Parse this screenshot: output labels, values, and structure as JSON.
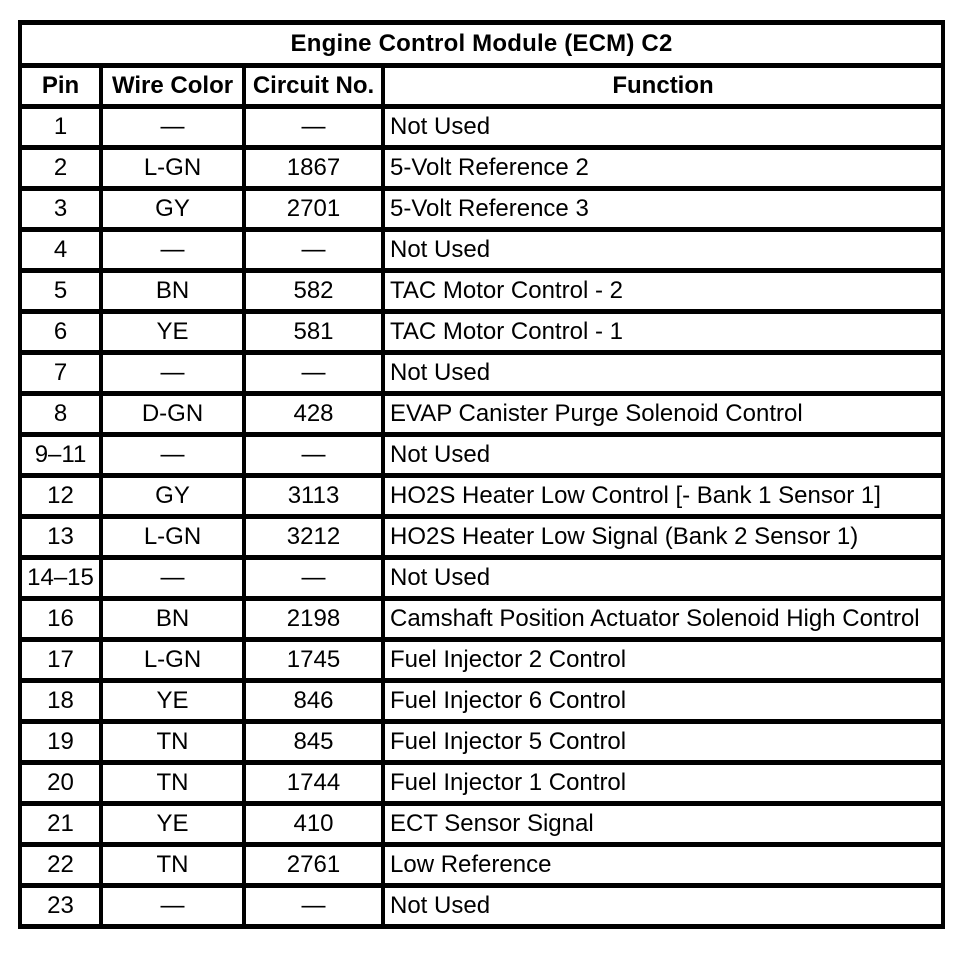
{
  "colors": {
    "border": "#000000",
    "background": "#ffffff",
    "text": "#000000"
  },
  "table": {
    "title": "Engine Control Module (ECM) C2",
    "columns": [
      "Pin",
      "Wire Color",
      "Circuit No.",
      "Function"
    ],
    "rows": [
      {
        "pin": "1",
        "wire_color": "—",
        "circuit_no": "—",
        "function": "Not Used"
      },
      {
        "pin": "2",
        "wire_color": "L-GN",
        "circuit_no": "1867",
        "function": "5-Volt Reference 2"
      },
      {
        "pin": "3",
        "wire_color": "GY",
        "circuit_no": "2701",
        "function": "5-Volt Reference 3"
      },
      {
        "pin": "4",
        "wire_color": "—",
        "circuit_no": "—",
        "function": "Not Used"
      },
      {
        "pin": "5",
        "wire_color": "BN",
        "circuit_no": "582",
        "function": "TAC Motor Control - 2"
      },
      {
        "pin": "6",
        "wire_color": "YE",
        "circuit_no": "581",
        "function": "TAC Motor Control - 1"
      },
      {
        "pin": "7",
        "wire_color": "—",
        "circuit_no": "—",
        "function": "Not Used"
      },
      {
        "pin": "8",
        "wire_color": "D-GN",
        "circuit_no": "428",
        "function": "EVAP Canister Purge Solenoid Control"
      },
      {
        "pin": "9–11",
        "wire_color": "—",
        "circuit_no": "—",
        "function": "Not Used"
      },
      {
        "pin": "12",
        "wire_color": "GY",
        "circuit_no": "3113",
        "function": "HO2S Heater Low Control [- Bank 1 Sensor 1]"
      },
      {
        "pin": "13",
        "wire_color": "L-GN",
        "circuit_no": "3212",
        "function": "HO2S Heater Low Signal (Bank 2 Sensor 1)"
      },
      {
        "pin": "14–15",
        "wire_color": "—",
        "circuit_no": "—",
        "function": "Not Used"
      },
      {
        "pin": "16",
        "wire_color": "BN",
        "circuit_no": "2198",
        "function": "Camshaft Position Actuator Solenoid High Control"
      },
      {
        "pin": "17",
        "wire_color": "L-GN",
        "circuit_no": "1745",
        "function": "Fuel Injector 2 Control"
      },
      {
        "pin": "18",
        "wire_color": "YE",
        "circuit_no": "846",
        "function": "Fuel Injector 6 Control"
      },
      {
        "pin": "19",
        "wire_color": "TN",
        "circuit_no": "845",
        "function": "Fuel Injector 5 Control"
      },
      {
        "pin": "20",
        "wire_color": "TN",
        "circuit_no": "1744",
        "function": "Fuel Injector 1 Control"
      },
      {
        "pin": "21",
        "wire_color": "YE",
        "circuit_no": "410",
        "function": "ECT Sensor Signal"
      },
      {
        "pin": "22",
        "wire_color": "TN",
        "circuit_no": "2761",
        "function": "Low Reference"
      },
      {
        "pin": "23",
        "wire_color": "—",
        "circuit_no": "—",
        "function": "Not Used"
      }
    ]
  }
}
